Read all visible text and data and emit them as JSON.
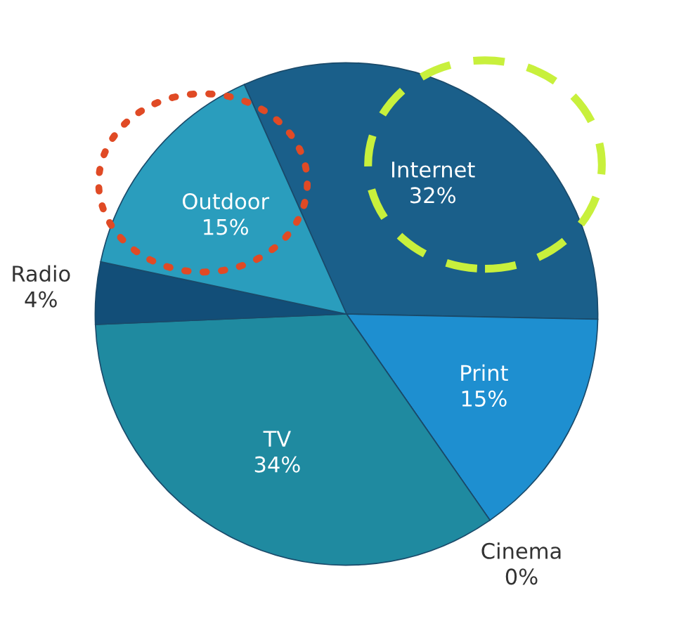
{
  "chart_data": {
    "type": "pie",
    "categories": [
      "Internet",
      "Print",
      "Cinema",
      "TV",
      "Radio",
      "Outdoor"
    ],
    "values": [
      32,
      15,
      0,
      34,
      4,
      15
    ],
    "value_labels": [
      "32%",
      "15%",
      "0%",
      "34%",
      "4%",
      "15%"
    ],
    "colors": [
      "#1a5f8a",
      "#1e8fd0",
      "#1a4a6a",
      "#1f8aa0",
      "#124e78",
      "#2a9dbd"
    ]
  }
}
